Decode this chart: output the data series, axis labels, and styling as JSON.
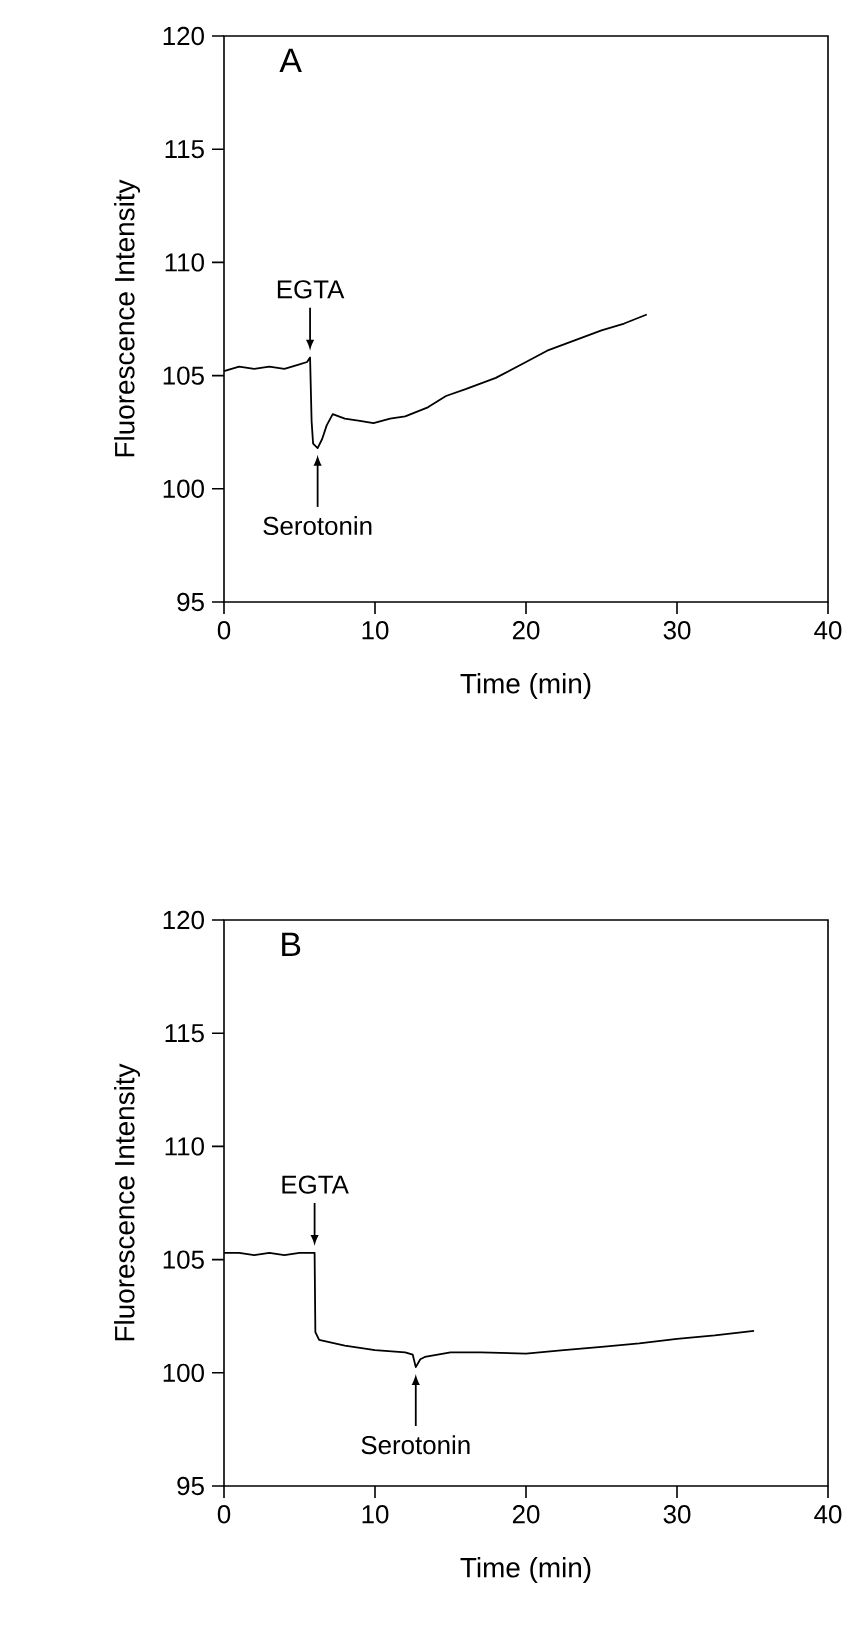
{
  "chart_data": [
    {
      "type": "line",
      "title": "A",
      "xlabel": "Time (min)",
      "ylabel": "Fluorescence Intensity",
      "xlim": [
        0,
        40
      ],
      "ylim": [
        95,
        120
      ],
      "xticks": [
        0,
        10,
        20,
        30,
        40
      ],
      "yticks": [
        95,
        100,
        105,
        110,
        115,
        120
      ],
      "series": [
        {
          "color": "#000000",
          "x": [
            0,
            1,
            2,
            3,
            4,
            5,
            5.5,
            5.7,
            5.8,
            5.9,
            6.2,
            6.5,
            6.8,
            7.2,
            8,
            9,
            9.9,
            11,
            12,
            13.5,
            14.7,
            16,
            18,
            20,
            21.4,
            23,
            25,
            26.5,
            28
          ],
          "values": [
            105.2,
            105.4,
            105.3,
            105.4,
            105.3,
            105.5,
            105.6,
            105.8,
            103.0,
            102.0,
            101.8,
            102.2,
            102.8,
            103.3,
            103.1,
            103.0,
            102.9,
            103.1,
            103.2,
            103.6,
            104.1,
            104.4,
            104.9,
            105.6,
            106.1,
            106.5,
            107.0,
            107.3,
            107.7
          ]
        }
      ],
      "annotations": [
        {
          "text": "EGTA",
          "x": 5.7,
          "y": 105.8
        },
        {
          "text": "Serotonin",
          "x": 6.2,
          "y": 101.8
        }
      ]
    },
    {
      "type": "line",
      "title": "B",
      "xlabel": "Time (min)",
      "ylabel": "Fluorescence Intensity",
      "xlim": [
        0,
        40
      ],
      "ylim": [
        95,
        120
      ],
      "xticks": [
        0,
        10,
        20,
        30,
        40
      ],
      "yticks": [
        95,
        100,
        105,
        110,
        115,
        120
      ],
      "series": [
        {
          "color": "#000000",
          "x": [
            0,
            1,
            2,
            3,
            4,
            5,
            6,
            6.05,
            6.3,
            8,
            10,
            12,
            12.5,
            12.7,
            13,
            13.3,
            15,
            17,
            20,
            22.5,
            25,
            27.5,
            30,
            32.5,
            35.1
          ],
          "values": [
            105.3,
            105.3,
            105.2,
            105.3,
            105.2,
            105.3,
            105.3,
            101.8,
            101.45,
            101.2,
            101.0,
            100.9,
            100.8,
            100.25,
            100.6,
            100.7,
            100.9,
            100.9,
            100.85,
            101.0,
            101.15,
            101.3,
            101.5,
            101.65,
            101.85
          ]
        }
      ],
      "annotations": [
        {
          "text": "EGTA",
          "x": 6.0,
          "y": 105.3
        },
        {
          "text": "Serotonin",
          "x": 12.7,
          "y": 100.25
        }
      ]
    }
  ]
}
